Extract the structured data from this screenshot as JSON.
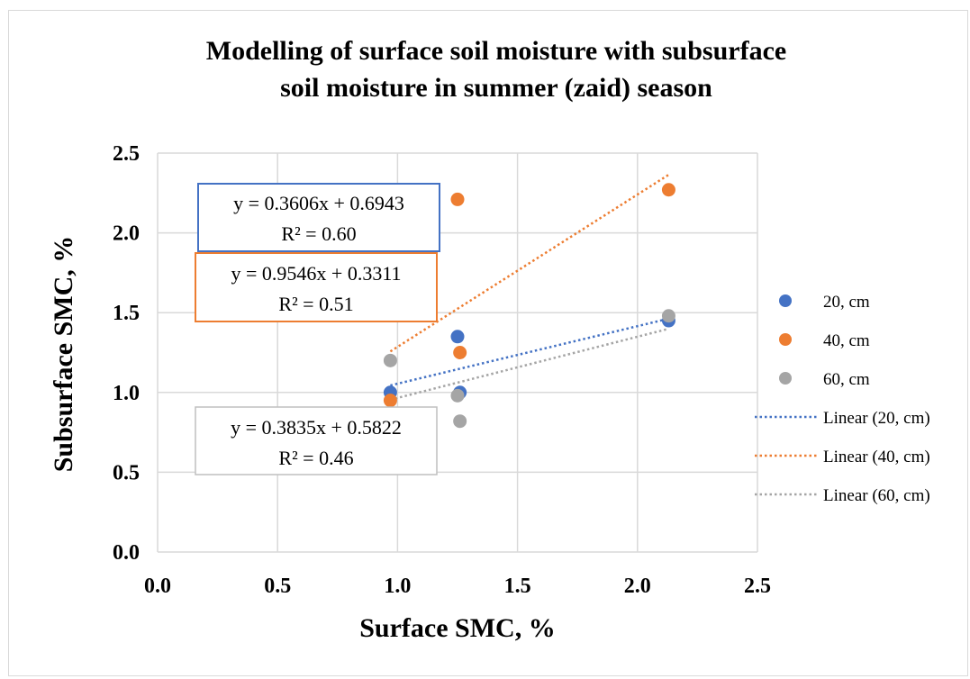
{
  "chart_data": {
    "type": "scatter",
    "title": [
      "Modelling of surface soil moisture with subsurface",
      "soil moisture in summer (zaid) season"
    ],
    "xlabel": "Surface SMC, %",
    "ylabel": "Subsurface SMC, %",
    "xlim": [
      0,
      2.5
    ],
    "ylim": [
      0,
      2.5
    ],
    "x_ticks": [
      "0.0",
      "0.5",
      "1.0",
      "1.5",
      "2.0",
      "2.5"
    ],
    "y_ticks": [
      "0.0",
      "0.5",
      "1.0",
      "1.5",
      "2.0",
      "2.5"
    ],
    "grid": true,
    "legend_position": "right",
    "series": [
      {
        "name": "20, cm",
        "color": "#4472C4",
        "points": [
          [
            0.97,
            1.0
          ],
          [
            1.25,
            1.35
          ],
          [
            1.26,
            1.0
          ],
          [
            2.13,
            1.45
          ]
        ],
        "trend": {
          "name": "Linear (20, cm)",
          "slope": 0.3606,
          "intercept": 0.6943,
          "x_range": [
            0.97,
            2.13
          ]
        },
        "equation": "y = 0.3606x + 0.6943",
        "r2": "R² = 0.60"
      },
      {
        "name": "40, cm",
        "color": "#ED7D31",
        "points": [
          [
            0.97,
            0.95
          ],
          [
            1.25,
            2.21
          ],
          [
            1.26,
            1.25
          ],
          [
            2.13,
            2.27
          ]
        ],
        "trend": {
          "name": "Linear (40, cm)",
          "slope": 0.9546,
          "intercept": 0.3311,
          "x_range": [
            0.97,
            2.13
          ]
        },
        "equation": "y = 0.9546x + 0.3311",
        "r2": "R² = 0.51"
      },
      {
        "name": "60, cm",
        "color": "#A5A5A5",
        "points": [
          [
            0.97,
            1.2
          ],
          [
            1.25,
            0.98
          ],
          [
            1.26,
            0.82
          ],
          [
            2.13,
            1.48
          ]
        ],
        "trend": {
          "name": "Linear (60, cm)",
          "slope": 0.3835,
          "intercept": 0.5822,
          "x_range": [
            0.97,
            2.13
          ]
        },
        "equation": "y = 0.3835x + 0.5822",
        "r2": "R² = 0.46"
      }
    ]
  }
}
